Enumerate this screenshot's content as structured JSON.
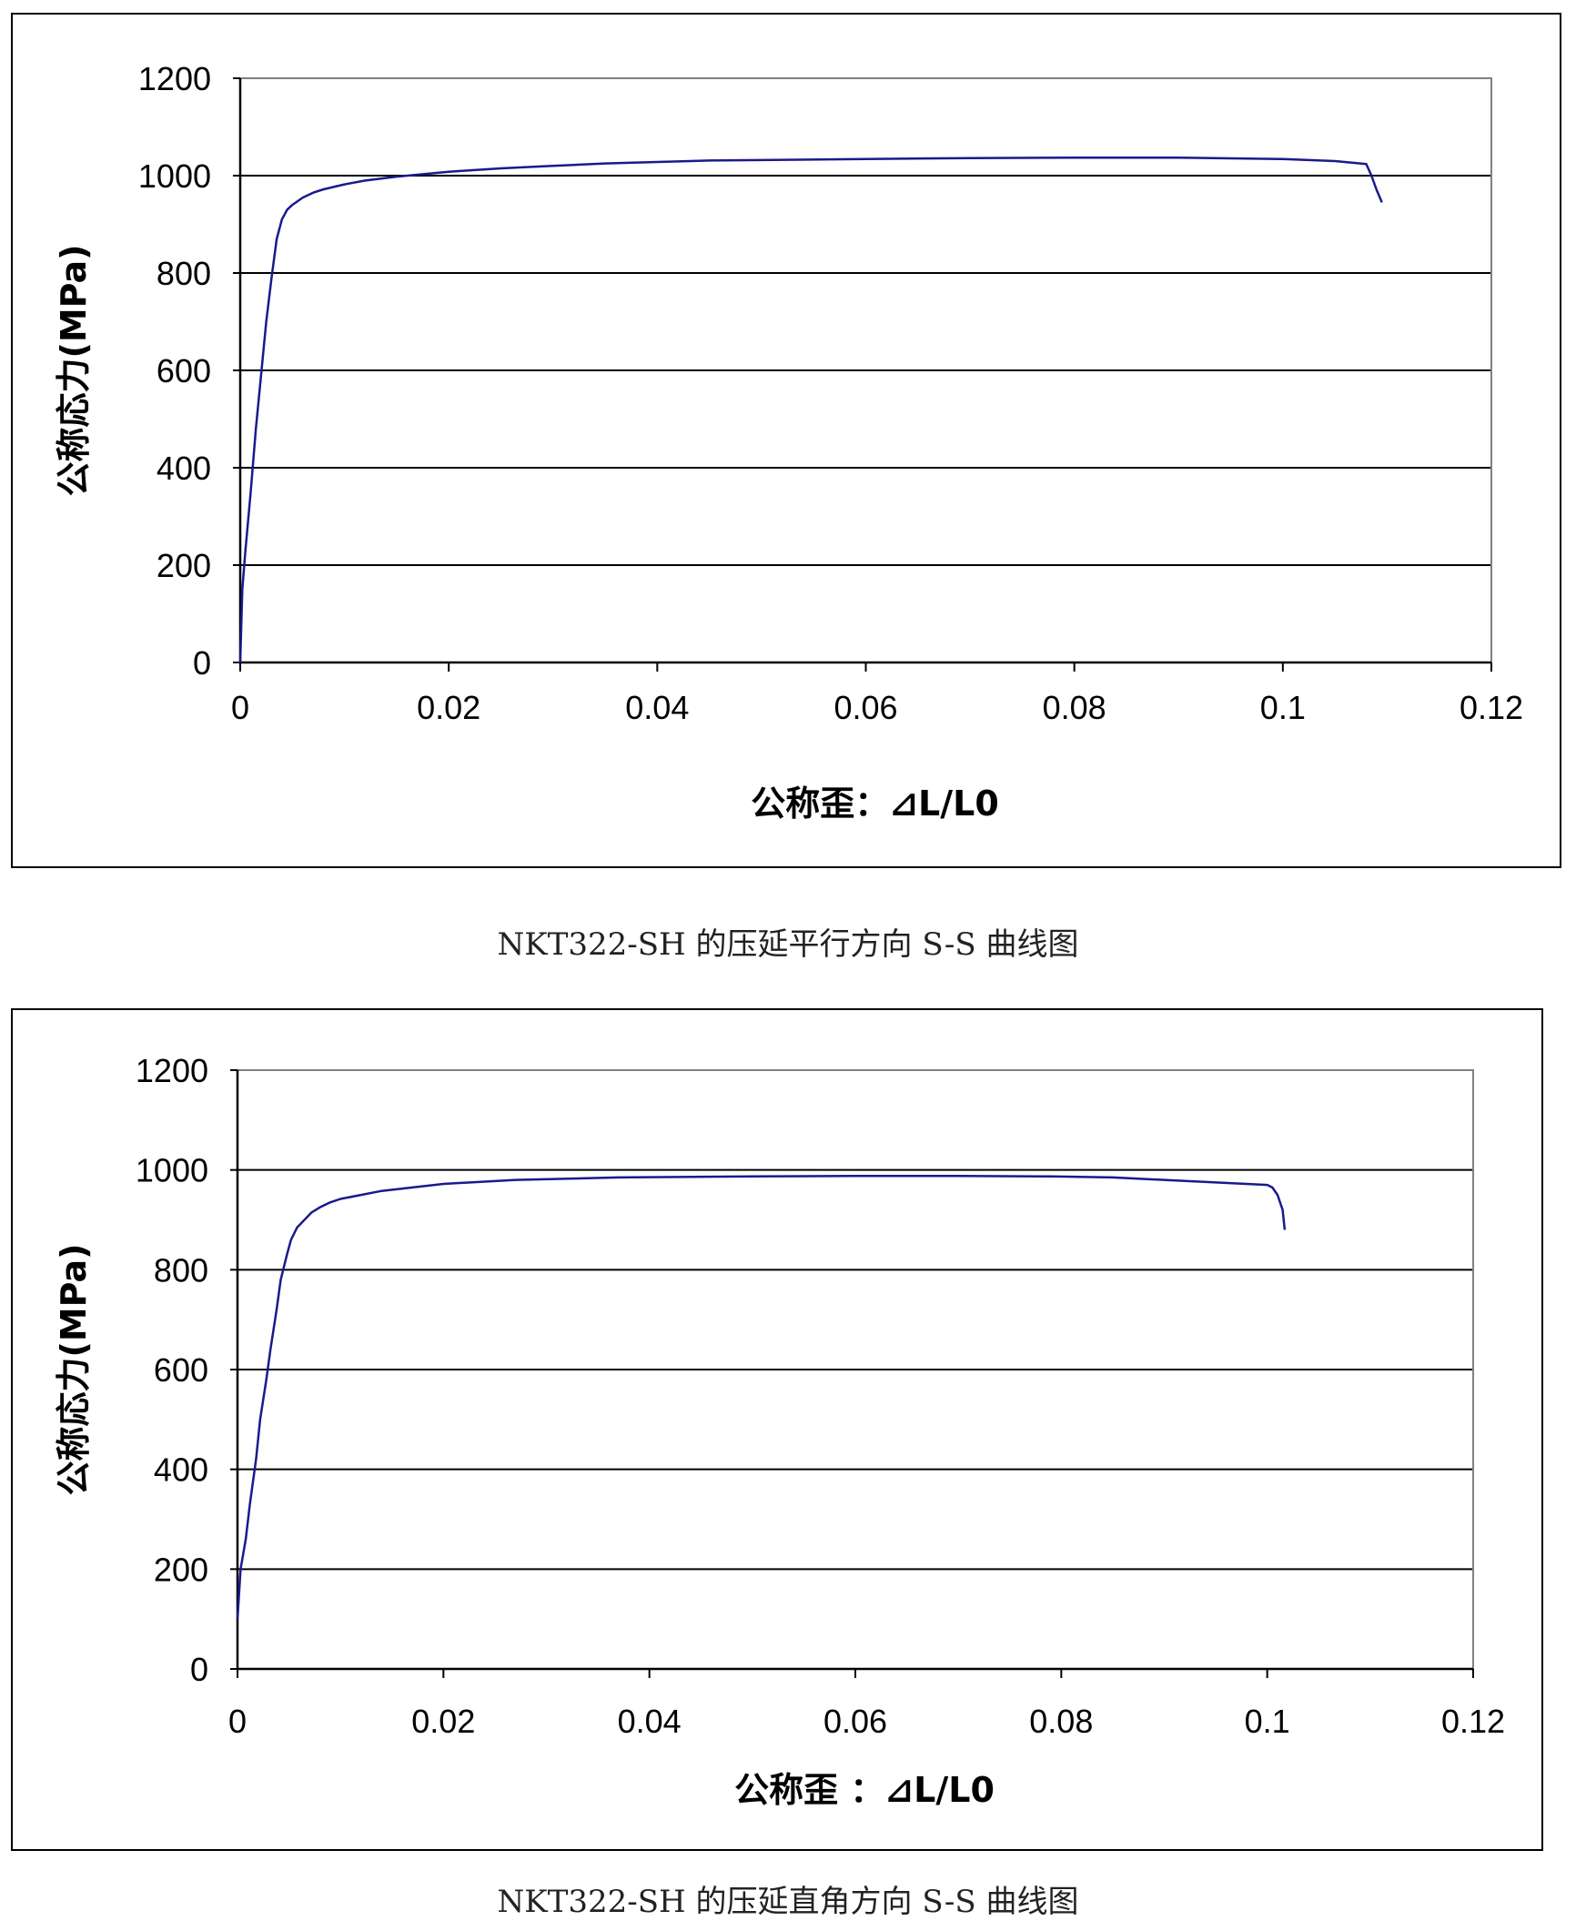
{
  "chart_data": [
    {
      "type": "line",
      "xlabel": "公称歪：⊿L/L0",
      "ylabel": "公称応力(MPa)",
      "xlim": [
        0,
        0.12
      ],
      "ylim": [
        0,
        1200
      ],
      "xticks": [
        "0",
        "0.02",
        "0.04",
        "0.06",
        "0.08",
        "0.1",
        "0.12"
      ],
      "yticks": [
        "0",
        "200",
        "400",
        "600",
        "800",
        "1000",
        "1200"
      ],
      "grid": "horizontal",
      "line_color": "#1a1a8c",
      "series": [
        {
          "x": [
            0,
            0.0002,
            0.0005,
            0.001,
            0.0015,
            0.002,
            0.0025,
            0.003,
            0.0035,
            0.004,
            0.0045,
            0.005,
            0.006,
            0.007,
            0.008,
            0.01,
            0.012,
            0.015,
            0.02,
            0.025,
            0.03,
            0.035,
            0.04,
            0.045,
            0.05,
            0.06,
            0.07,
            0.08,
            0.09,
            0.1,
            0.105,
            0.108,
            0.1085,
            0.109,
            0.1095
          ],
          "y": [
            0,
            150,
            230,
            350,
            480,
            590,
            700,
            790,
            870,
            910,
            930,
            940,
            955,
            965,
            972,
            982,
            990,
            998,
            1008,
            1015,
            1020,
            1025,
            1028,
            1031,
            1032,
            1034,
            1036,
            1037,
            1037,
            1034,
            1030,
            1024,
            1000,
            970,
            945
          ]
        }
      ]
    },
    {
      "type": "line",
      "xlabel": "公称歪 ：⊿L/L0",
      "ylabel": "公称応力(MPa)",
      "xlim": [
        0,
        0.12
      ],
      "ylim": [
        0,
        1200
      ],
      "xticks": [
        "0",
        "0.02",
        "0.04",
        "0.06",
        "0.08",
        "0.1",
        "0.12"
      ],
      "yticks": [
        "0",
        "200",
        "400",
        "600",
        "800",
        "1000",
        "1200"
      ],
      "grid": "horizontal",
      "line_color": "#1a1a8c",
      "series": [
        {
          "x": [
            0,
            0.0003,
            0.0008,
            0.0012,
            0.0018,
            0.0022,
            0.0028,
            0.0032,
            0.0038,
            0.0042,
            0.0048,
            0.0052,
            0.0058,
            0.0065,
            0.0072,
            0.008,
            0.009,
            0.01,
            0.012,
            0.014,
            0.017,
            0.02,
            0.027,
            0.037,
            0.05,
            0.06,
            0.07,
            0.079,
            0.085,
            0.09,
            0.095,
            0.1,
            0.1005,
            0.101,
            0.1015,
            0.1017
          ],
          "y": [
            100,
            200,
            260,
            330,
            420,
            500,
            580,
            640,
            720,
            780,
            830,
            860,
            885,
            900,
            915,
            925,
            935,
            942,
            950,
            958,
            965,
            972,
            980,
            985,
            987,
            988,
            988,
            987,
            985,
            980,
            975,
            970,
            965,
            950,
            920,
            880
          ]
        }
      ]
    }
  ],
  "captions": {
    "chart1": "NKT322-SH 的压延平行方向 S-S 曲线图",
    "chart2": "NKT322-SH 的压延直角方向 S-S 曲线图"
  }
}
